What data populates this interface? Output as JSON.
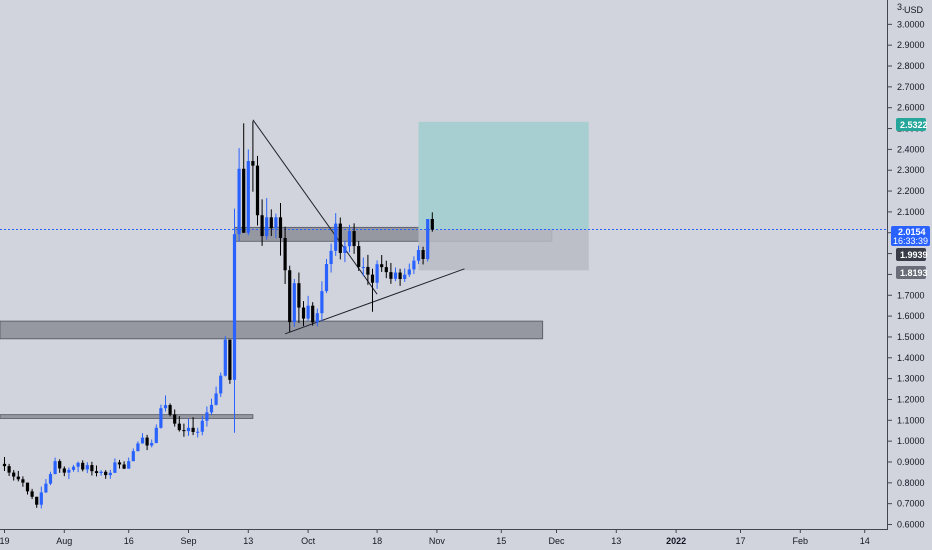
{
  "instrument": {
    "currency": "USD"
  },
  "colors": {
    "background": "#d1d4dc",
    "up_candle": "#2962ff",
    "down_candle": "#000000",
    "zone_fill": "#9598a1",
    "target_fill": "#a7cfd2",
    "stop_fill": "#b8bbc3",
    "tag_target": "#26a69a",
    "tag_current": "#2962ff",
    "tag_dark": "#3a3d47",
    "tag_grey": "#6a6d78"
  },
  "chart_data": {
    "type": "candlestick",
    "y_axis": {
      "range": [
        0.6,
        3.1
      ],
      "ticks": [
        "0.6000",
        "0.7000",
        "0.8000",
        "0.9000",
        "1.0000",
        "1.1000",
        "1.2000",
        "1.3000",
        "1.4000",
        "1.5000",
        "1.6000",
        "1.7000",
        "1.8000",
        "1.9000",
        "2.0000",
        "2.1000",
        "2.2000",
        "2.3000",
        "2.4000",
        "2.5000",
        "2.6000",
        "2.7000",
        "2.8000",
        "2.9000",
        "3.0000"
      ],
      "ticks_numeric": [
        0.6,
        0.7,
        0.8,
        0.9,
        1.0,
        1.1,
        1.2,
        1.3,
        1.4,
        1.5,
        1.6,
        1.7,
        1.8,
        1.9,
        2.0,
        2.1,
        2.2,
        2.3,
        2.4,
        2.5,
        2.6,
        2.7,
        2.8,
        2.9,
        3.0
      ],
      "top_partial": "3."
    },
    "x_axis": {
      "labels": [
        "19",
        "Aug",
        "16",
        "Sep",
        "13",
        "Oct",
        "18",
        "Nov",
        "15",
        "Dec",
        "13",
        "2022",
        "17",
        "Feb",
        "14"
      ],
      "bold": [
        "2022"
      ],
      "bar_index": [
        0,
        13,
        27,
        40,
        53,
        66,
        81,
        94,
        108,
        120,
        133,
        146,
        160,
        173,
        187
      ],
      "total_bars": 191
    },
    "candles_ohlc": [
      [
        0.891,
        0.924,
        0.857,
        0.88
      ],
      [
        0.88,
        0.891,
        0.833,
        0.849
      ],
      [
        0.849,
        0.861,
        0.811,
        0.83
      ],
      [
        0.83,
        0.857,
        0.807,
        0.817
      ],
      [
        0.817,
        0.831,
        0.781,
        0.801
      ],
      [
        0.801,
        0.801,
        0.744,
        0.759
      ],
      [
        0.759,
        0.771,
        0.722,
        0.733
      ],
      [
        0.733,
        0.733,
        0.68,
        0.695
      ],
      [
        0.695,
        0.782,
        0.677,
        0.754
      ],
      [
        0.754,
        0.818,
        0.751,
        0.796
      ],
      [
        0.796,
        0.853,
        0.789,
        0.842
      ],
      [
        0.842,
        0.921,
        0.841,
        0.904
      ],
      [
        0.904,
        0.913,
        0.848,
        0.869
      ],
      [
        0.869,
        0.879,
        0.832,
        0.849
      ],
      [
        0.849,
        0.873,
        0.818,
        0.862
      ],
      [
        0.862,
        0.886,
        0.853,
        0.877
      ],
      [
        0.877,
        0.902,
        0.851,
        0.896
      ],
      [
        0.896,
        0.908,
        0.855,
        0.864
      ],
      [
        0.864,
        0.899,
        0.847,
        0.885
      ],
      [
        0.885,
        0.901,
        0.835,
        0.856
      ],
      [
        0.856,
        0.883,
        0.831,
        0.847
      ],
      [
        0.847,
        0.861,
        0.834,
        0.853
      ],
      [
        0.853,
        0.861,
        0.819,
        0.837
      ],
      [
        0.837,
        0.862,
        0.819,
        0.848
      ],
      [
        0.848,
        0.917,
        0.847,
        0.898
      ],
      [
        0.898,
        0.91,
        0.869,
        0.888
      ],
      [
        0.888,
        0.903,
        0.866,
        0.868
      ],
      [
        0.868,
        0.921,
        0.867,
        0.904
      ],
      [
        0.904,
        0.965,
        0.903,
        0.952
      ],
      [
        0.952,
        0.999,
        0.951,
        0.989
      ],
      [
        0.989,
        1.038,
        0.988,
        1.017
      ],
      [
        1.017,
        1.03,
        0.957,
        0.979
      ],
      [
        0.979,
        1.008,
        0.97,
        0.991
      ],
      [
        0.991,
        1.08,
        0.99,
        1.064
      ],
      [
        1.064,
        1.175,
        1.06,
        1.158
      ],
      [
        1.158,
        1.219,
        1.142,
        1.173
      ],
      [
        1.173,
        1.181,
        1.119,
        1.128
      ],
      [
        1.128,
        1.152,
        1.07,
        1.084
      ],
      [
        1.084,
        1.12,
        1.046,
        1.053
      ],
      [
        1.053,
        1.084,
        1.021,
        1.048
      ],
      [
        1.048,
        1.107,
        1.025,
        1.064
      ],
      [
        1.064,
        1.115,
        1.029,
        1.044
      ],
      [
        1.044,
        1.064,
        1.018,
        1.045
      ],
      [
        1.045,
        1.122,
        1.028,
        1.098
      ],
      [
        1.098,
        1.166,
        1.07,
        1.138
      ],
      [
        1.138,
        1.204,
        1.126,
        1.174
      ],
      [
        1.174,
        1.262,
        1.171,
        1.229
      ],
      [
        1.229,
        1.329,
        1.212,
        1.314
      ],
      [
        1.314,
        1.504,
        1.31,
        1.487
      ],
      [
        1.487,
        1.487,
        1.275,
        1.294
      ],
      [
        1.294,
        2.116,
        1.04,
        1.993
      ],
      [
        1.993,
        2.406,
        1.958,
        2.307
      ],
      [
        2.307,
        2.525,
        1.999,
        2.0
      ],
      [
        2.0,
        2.4,
        1.988,
        2.344
      ],
      [
        2.344,
        2.535,
        2.197,
        2.322
      ],
      [
        2.322,
        2.369,
        2.035,
        2.084
      ],
      [
        2.084,
        2.16,
        1.937,
        1.984
      ],
      [
        1.984,
        2.166,
        1.967,
        2.074
      ],
      [
        2.074,
        2.112,
        1.984,
        2.022
      ],
      [
        2.022,
        2.092,
        1.974,
        2.074
      ],
      [
        2.074,
        2.143,
        1.89,
        1.975
      ],
      [
        1.975,
        2.029,
        1.754,
        1.82
      ],
      [
        1.82,
        1.842,
        1.524,
        1.571
      ],
      [
        1.571,
        1.778,
        1.548,
        1.758
      ],
      [
        1.758,
        1.809,
        1.567,
        1.641
      ],
      [
        1.641,
        1.672,
        1.552,
        1.588
      ],
      [
        1.588,
        1.697,
        1.578,
        1.65
      ],
      [
        1.65,
        1.667,
        1.554,
        1.57
      ],
      [
        1.57,
        1.636,
        1.551,
        1.614
      ],
      [
        1.614,
        1.767,
        1.576,
        1.72
      ],
      [
        1.72,
        1.874,
        1.71,
        1.85
      ],
      [
        1.85,
        1.948,
        1.809,
        1.913
      ],
      [
        1.913,
        2.094,
        1.889,
        2.044
      ],
      [
        2.044,
        2.073,
        1.872,
        1.903
      ],
      [
        1.903,
        1.962,
        1.859,
        1.935
      ],
      [
        1.935,
        2.038,
        1.906,
        2.008
      ],
      [
        2.008,
        2.045,
        1.899,
        1.936
      ],
      [
        1.936,
        1.96,
        1.817,
        1.836
      ],
      [
        1.836,
        1.881,
        1.792,
        1.836
      ],
      [
        1.836,
        1.894,
        1.75,
        1.799
      ],
      [
        1.799,
        1.827,
        1.621,
        1.76
      ],
      [
        1.76,
        1.867,
        1.731,
        1.849
      ],
      [
        1.849,
        1.893,
        1.812,
        1.835
      ],
      [
        1.835,
        1.866,
        1.782,
        1.811
      ],
      [
        1.811,
        1.855,
        1.755,
        1.779
      ],
      [
        1.779,
        1.833,
        1.768,
        1.809
      ],
      [
        1.809,
        1.827,
        1.745,
        1.778
      ],
      [
        1.778,
        1.829,
        1.764,
        1.799
      ],
      [
        1.799,
        1.852,
        1.788,
        1.824
      ],
      [
        1.824,
        1.887,
        1.802,
        1.866
      ],
      [
        1.866,
        1.938,
        1.85,
        1.917
      ],
      [
        1.917,
        1.933,
        1.848,
        1.874
      ],
      [
        1.874,
        2.066,
        1.862,
        2.066
      ],
      [
        2.066,
        2.098,
        2.005,
        2.015
      ]
    ]
  },
  "annotations": {
    "horizontal_zones": [
      {
        "name": "zone-upper",
        "x_range": [
          50,
          119
        ],
        "y_range": [
          1.959,
          2.026
        ]
      },
      {
        "name": "zone-middle",
        "x_range": [
          -2,
          117
        ],
        "y_range": [
          1.491,
          1.576
        ]
      },
      {
        "name": "zone-lower",
        "x_range": [
          -2,
          54
        ],
        "y_range": [
          1.109,
          1.127
        ]
      }
    ],
    "long_position": {
      "x_range": [
        90,
        127
      ],
      "target": 2.5322,
      "entry": 2.0154,
      "stop": 1.8193
    },
    "trendlines": [
      {
        "name": "descending-trendline",
        "from": [
          54,
          2.542
        ],
        "to": [
          81,
          1.705
        ]
      },
      {
        "name": "ascending-trendline",
        "from": [
          61,
          1.515
        ],
        "to": [
          100,
          1.827
        ]
      }
    ],
    "current_price_line": 2.0154
  },
  "price_tags": {
    "target": {
      "label": "2.5322",
      "value": 2.5322
    },
    "current": {
      "label": "2.0154",
      "countdown": "16:33:39",
      "value": 2.0154
    },
    "zone": {
      "label": "1.9939",
      "value": 1.9939
    },
    "stop": {
      "label": "1.8193",
      "value": 1.8193
    }
  }
}
